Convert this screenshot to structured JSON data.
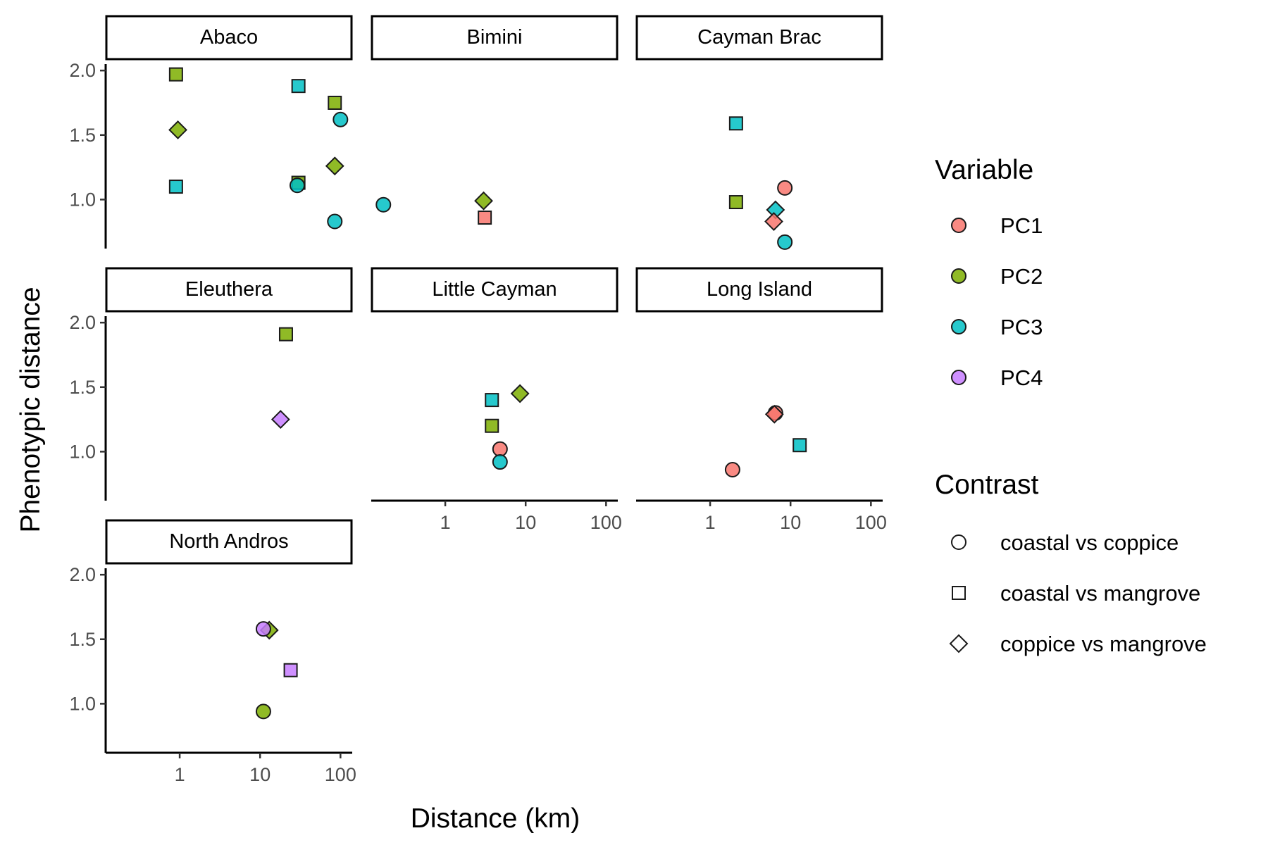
{
  "chart_data": {
    "type": "scatter",
    "xlabel": "Distance (km)",
    "ylabel": "Phenotypic distance",
    "x_scale": "log10",
    "xlim": [
      0.12,
      140
    ],
    "ylim": [
      0.62,
      2.05
    ],
    "x_ticks": [
      1,
      10,
      100
    ],
    "y_ticks": [
      1.0,
      1.5,
      2.0
    ],
    "x_tick_labels": [
      "1",
      "10",
      "100"
    ],
    "y_tick_labels": [
      "1.0",
      "1.5",
      "2.0"
    ],
    "legend": {
      "placement": "right",
      "variable_title": "Variable",
      "variables": [
        {
          "name": "PC1",
          "color": "#F8766D"
        },
        {
          "name": "PC2",
          "color": "#7CAE00"
        },
        {
          "name": "PC3",
          "color": "#00BFC4"
        },
        {
          "name": "PC4",
          "color": "#C77CFF"
        }
      ],
      "contrast_title": "Contrast",
      "contrasts": [
        {
          "name": "coastal vs coppice",
          "shape": "circle"
        },
        {
          "name": "coastal vs mangrove",
          "shape": "square"
        },
        {
          "name": "coppice vs mangrove",
          "shape": "diamond"
        }
      ]
    },
    "facets": [
      {
        "name": "Abaco",
        "points": [
          {
            "x": 0.9,
            "y": 1.97,
            "variable": "PC2",
            "contrast": "coastal vs mangrove"
          },
          {
            "x": 0.95,
            "y": 1.54,
            "variable": "PC2",
            "contrast": "coppice vs mangrove"
          },
          {
            "x": 0.9,
            "y": 1.1,
            "variable": "PC3",
            "contrast": "coastal vs mangrove"
          },
          {
            "x": 30,
            "y": 1.88,
            "variable": "PC3",
            "contrast": "coastal vs mangrove"
          },
          {
            "x": 30,
            "y": 1.13,
            "variable": "PC2",
            "contrast": "coastal vs mangrove"
          },
          {
            "x": 29,
            "y": 1.11,
            "variable": "PC3",
            "contrast": "coastal vs coppice"
          },
          {
            "x": 85,
            "y": 1.75,
            "variable": "PC2",
            "contrast": "coastal vs mangrove"
          },
          {
            "x": 85,
            "y": 1.26,
            "variable": "PC2",
            "contrast": "coppice vs mangrove"
          },
          {
            "x": 100,
            "y": 1.62,
            "variable": "PC3",
            "contrast": "coastal vs coppice"
          },
          {
            "x": 85,
            "y": 0.83,
            "variable": "PC3",
            "contrast": "coastal vs coppice"
          }
        ]
      },
      {
        "name": "Bimini",
        "points": [
          {
            "x": 0.17,
            "y": 0.96,
            "variable": "PC3",
            "contrast": "coastal vs coppice"
          },
          {
            "x": 3.0,
            "y": 0.99,
            "variable": "PC2",
            "contrast": "coppice vs mangrove"
          },
          {
            "x": 3.1,
            "y": 0.86,
            "variable": "PC1",
            "contrast": "coastal vs mangrove"
          }
        ]
      },
      {
        "name": "Cayman Brac",
        "points": [
          {
            "x": 2.1,
            "y": 1.59,
            "variable": "PC3",
            "contrast": "coastal vs mangrove"
          },
          {
            "x": 2.1,
            "y": 0.98,
            "variable": "PC2",
            "contrast": "coastal vs mangrove"
          },
          {
            "x": 8.5,
            "y": 1.09,
            "variable": "PC1",
            "contrast": "coastal vs coppice"
          },
          {
            "x": 6.5,
            "y": 0.92,
            "variable": "PC3",
            "contrast": "coppice vs mangrove"
          },
          {
            "x": 6.2,
            "y": 0.83,
            "variable": "PC1",
            "contrast": "coppice vs mangrove"
          },
          {
            "x": 8.5,
            "y": 0.67,
            "variable": "PC3",
            "contrast": "coastal vs coppice"
          }
        ]
      },
      {
        "name": "Eleuthera",
        "points": [
          {
            "x": 21,
            "y": 1.91,
            "variable": "PC2",
            "contrast": "coastal vs mangrove"
          },
          {
            "x": 18,
            "y": 1.25,
            "variable": "PC4",
            "contrast": "coppice vs mangrove"
          }
        ]
      },
      {
        "name": "Little Cayman",
        "points": [
          {
            "x": 8.5,
            "y": 1.45,
            "variable": "PC2",
            "contrast": "coppice vs mangrove"
          },
          {
            "x": 3.8,
            "y": 1.4,
            "variable": "PC3",
            "contrast": "coastal vs mangrove"
          },
          {
            "x": 3.8,
            "y": 1.2,
            "variable": "PC2",
            "contrast": "coastal vs mangrove"
          },
          {
            "x": 4.8,
            "y": 1.02,
            "variable": "PC1",
            "contrast": "coastal vs coppice"
          },
          {
            "x": 4.8,
            "y": 0.92,
            "variable": "PC3",
            "contrast": "coastal vs coppice"
          }
        ]
      },
      {
        "name": "Long Island",
        "points": [
          {
            "x": 6.5,
            "y": 1.3,
            "variable": "PC1",
            "contrast": "coastal vs coppice"
          },
          {
            "x": 6.3,
            "y": 1.29,
            "variable": "PC1",
            "contrast": "coppice vs mangrove"
          },
          {
            "x": 13,
            "y": 1.05,
            "variable": "PC3",
            "contrast": "coastal vs mangrove"
          },
          {
            "x": 1.9,
            "y": 0.86,
            "variable": "PC1",
            "contrast": "coastal vs coppice"
          }
        ]
      },
      {
        "name": "North Andros",
        "points": [
          {
            "x": 13,
            "y": 1.57,
            "variable": "PC2",
            "contrast": "coppice vs mangrove"
          },
          {
            "x": 11,
            "y": 1.58,
            "variable": "PC4",
            "contrast": "coastal vs coppice"
          },
          {
            "x": 24,
            "y": 1.26,
            "variable": "PC4",
            "contrast": "coastal vs mangrove"
          },
          {
            "x": 11,
            "y": 0.94,
            "variable": "PC2",
            "contrast": "coastal vs coppice"
          }
        ]
      }
    ]
  }
}
